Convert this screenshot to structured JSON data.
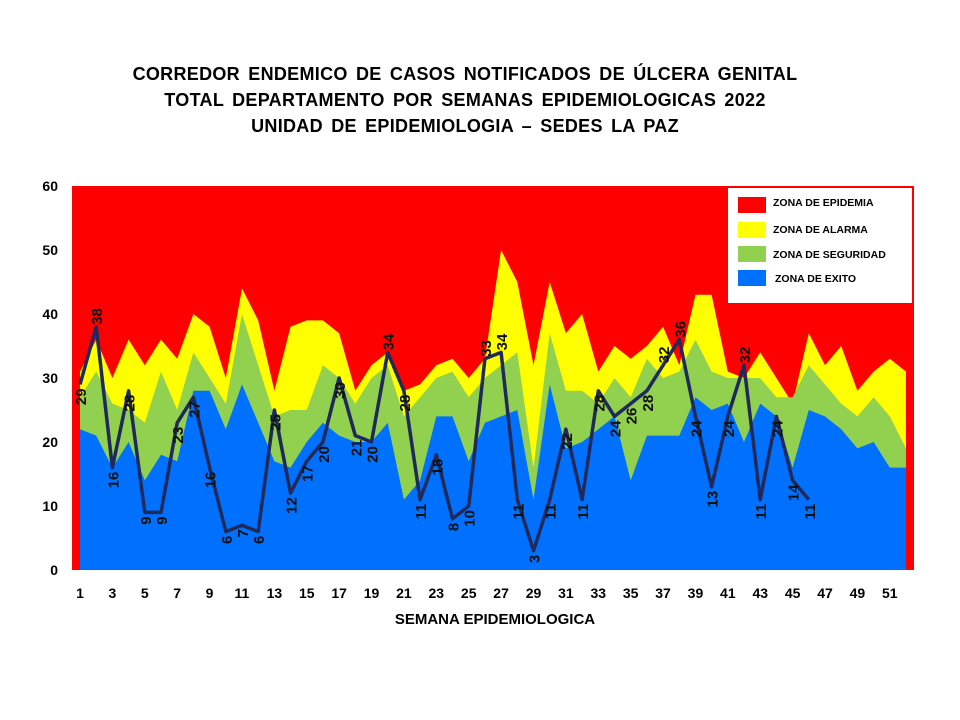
{
  "title_lines": [
    "CORREDOR  ENDEMICO  DE CASOS NOTIFICADOS  DE ÚLCERA GENITAL",
    "TOTAL DEPARTAMENTO  POR SEMANAS  EPIDEMIOLOGICAS  2022",
    "UNIDAD  DE EPIDEMIOLOGIA  – SEDES LA PAZ"
  ],
  "colors": {
    "epidemia": "#ff0000",
    "alarma": "#ffff00",
    "seguridad": "#92d050",
    "exito": "#0070ff",
    "line": "#1f2a5a"
  },
  "chart_data": {
    "type": "area",
    "xlabel": "SEMANA EPIDEMIOLOGICA",
    "ylabel": "",
    "ylim": [
      0,
      60
    ],
    "yticks": [
      0,
      10,
      20,
      30,
      40,
      50,
      60
    ],
    "xlim": [
      1,
      52
    ],
    "xticks": [
      1,
      3,
      5,
      7,
      9,
      11,
      13,
      15,
      17,
      19,
      21,
      23,
      25,
      27,
      29,
      31,
      33,
      35,
      37,
      39,
      41,
      43,
      45,
      47,
      49,
      51
    ],
    "grid": false,
    "legend_position": "top-right",
    "series": [
      {
        "name": "ZONA DE EPIDEMIA",
        "role": "background",
        "values": [
          60
        ]
      },
      {
        "name": "ZONA DE ALARMA",
        "role": "band",
        "values": [
          31,
          36,
          30,
          36,
          32,
          36,
          33,
          40,
          38,
          30,
          44,
          39,
          28,
          38,
          39,
          39,
          37,
          28,
          32,
          34,
          28,
          29,
          32,
          33,
          30,
          33,
          50,
          45,
          32,
          45,
          37,
          40,
          31,
          35,
          33,
          35,
          38,
          32,
          43,
          43,
          31,
          30,
          34,
          30,
          26,
          37,
          32,
          35,
          28,
          31,
          33,
          31
        ]
      },
      {
        "name": "ZONA DE  SEGURIDAD",
        "role": "band",
        "values": [
          27,
          31,
          26,
          25,
          23,
          31,
          25,
          34,
          30,
          26,
          40,
          32,
          24,
          25,
          25,
          32,
          30,
          26,
          30,
          32,
          24,
          27,
          30,
          31,
          27,
          30,
          32,
          34,
          16,
          37,
          28,
          28,
          26,
          30,
          27,
          33,
          30,
          31,
          36,
          31,
          30,
          30,
          30,
          27,
          27,
          32,
          29,
          26,
          24,
          27,
          24,
          19
        ]
      },
      {
        "name": "ZONA DE  EXITO",
        "role": "band",
        "values": [
          22,
          21,
          16,
          20,
          14,
          18,
          17,
          28,
          28,
          22,
          29,
          23,
          17,
          16,
          20,
          23,
          21,
          20,
          20,
          23,
          11,
          14,
          24,
          24,
          17,
          23,
          24,
          25,
          11,
          29,
          19,
          20,
          22,
          24,
          14,
          21,
          21,
          21,
          27,
          25,
          26,
          20,
          26,
          24,
          16,
          25,
          24,
          22,
          19,
          20,
          16,
          16
        ]
      },
      {
        "name": "CASOS 2022",
        "role": "line",
        "show_in_legend": false,
        "values": [
          29,
          38,
          16,
          28,
          9,
          9,
          23,
          27,
          16,
          6,
          7,
          6,
          25,
          12,
          17,
          20,
          30,
          21,
          20,
          34,
          28,
          11,
          18,
          8,
          10,
          33,
          34,
          11,
          3,
          11,
          22,
          11,
          28,
          24,
          26,
          28,
          32,
          36,
          24,
          13,
          24,
          32,
          11,
          24,
          14,
          11
        ],
        "data_labels": [
          "29",
          "38",
          "16",
          "28",
          "9",
          "9",
          "23",
          "27",
          "16",
          "6",
          "7",
          "6",
          "25",
          "12",
          "17",
          "20",
          "30",
          "21",
          "20",
          "34",
          "28",
          "11",
          "18",
          "8",
          "10",
          "33",
          "34",
          "11",
          "3",
          "11",
          "22",
          "11",
          "28",
          "24",
          "26",
          "28",
          "32",
          "36",
          "24",
          "13",
          "24",
          "32",
          "11",
          "24",
          "14",
          "11"
        ]
      }
    ]
  }
}
